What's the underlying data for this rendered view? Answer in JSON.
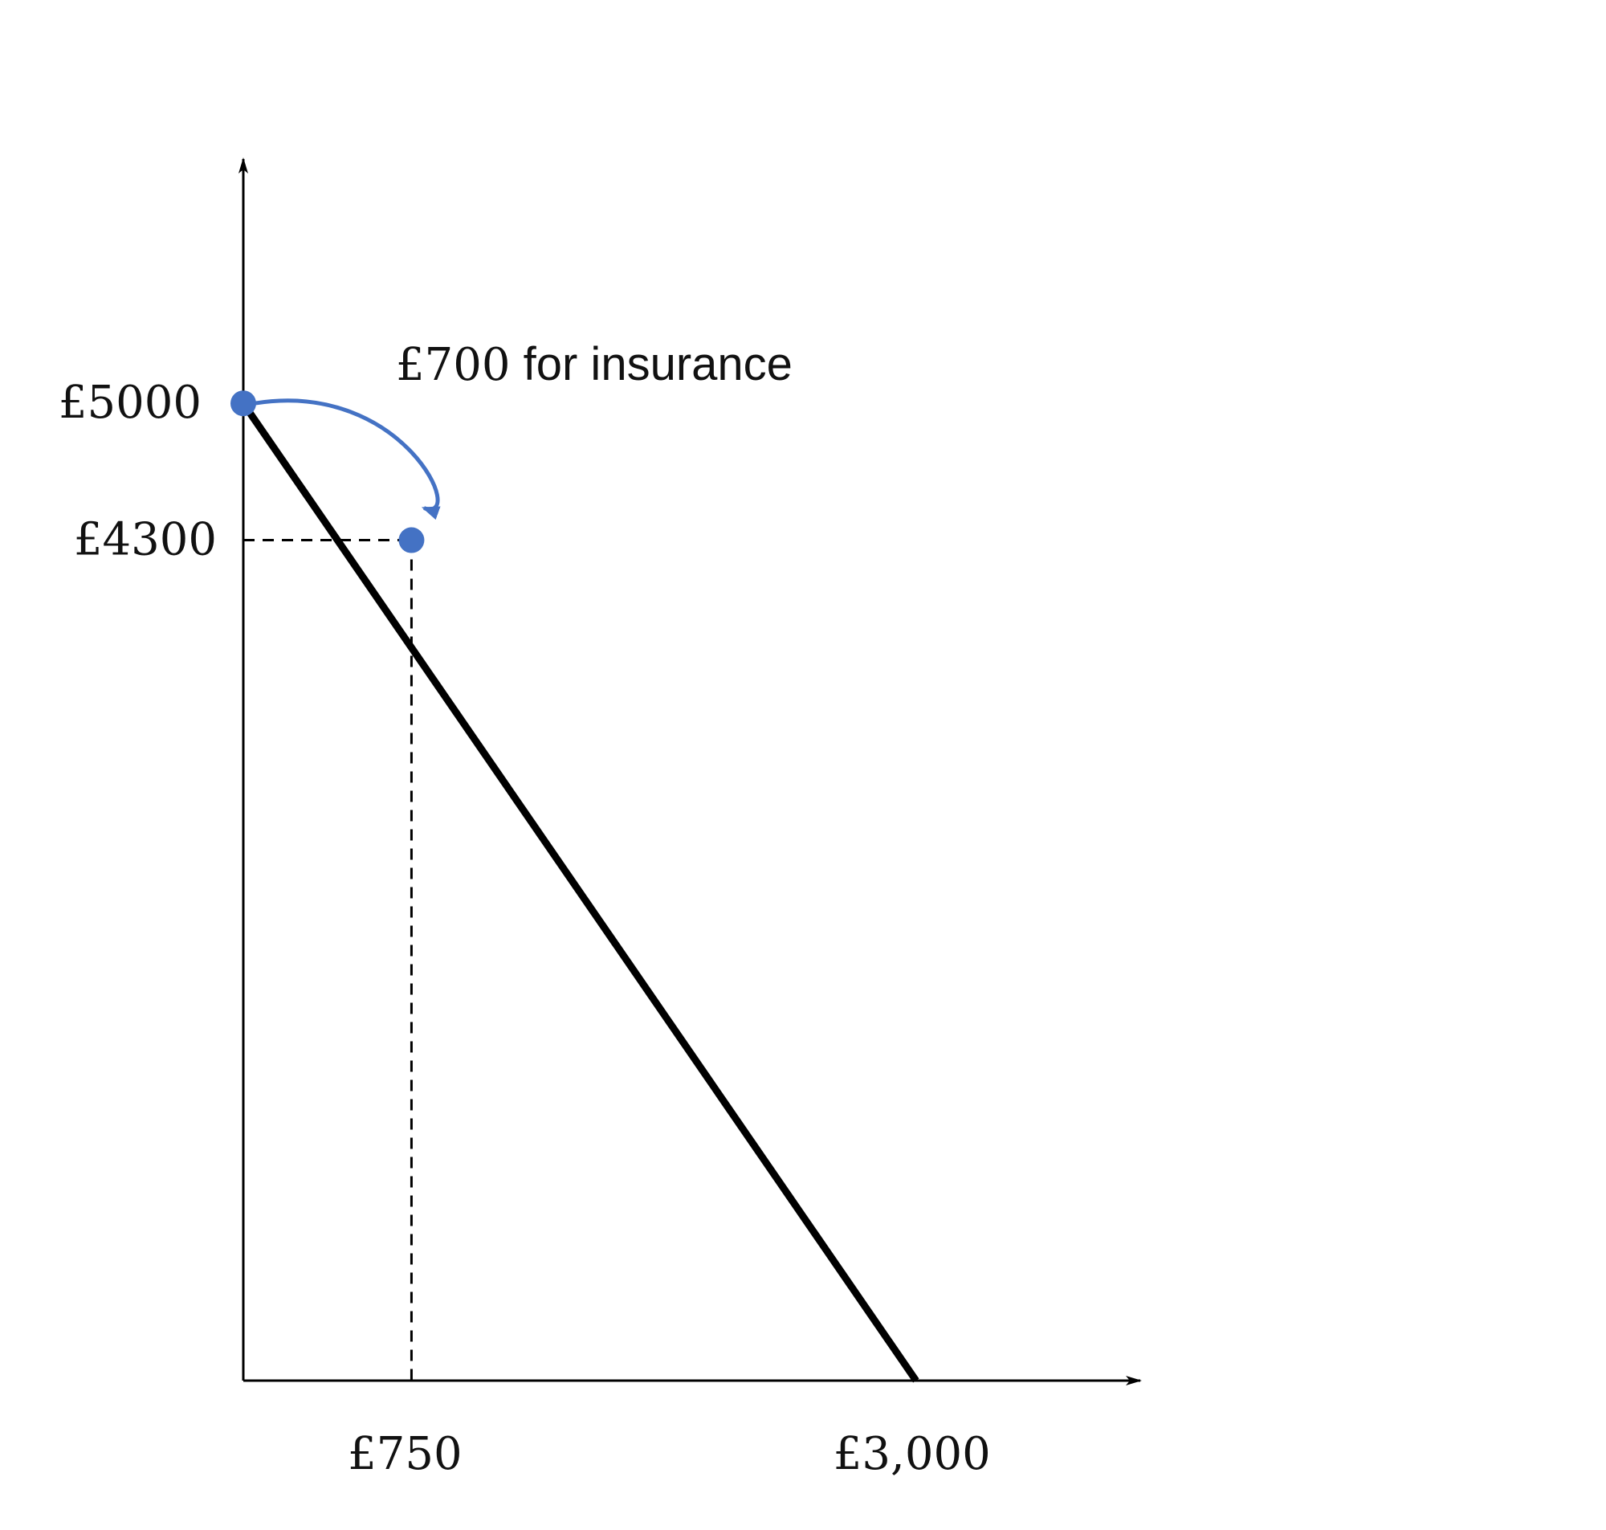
{
  "chart_data": {
    "type": "line",
    "title": "",
    "xlabel": "",
    "ylabel": "",
    "xlim": [
      0,
      4000
    ],
    "ylim": [
      0,
      6250
    ],
    "grid": false,
    "legend": "none",
    "series": [
      {
        "x": [
          0,
          3000
        ],
        "y": [
          5000,
          0
        ],
        "color": "#000000"
      }
    ],
    "points": [
      {
        "x": 0,
        "y": 5000,
        "color": "#4472c4"
      },
      {
        "x": 750,
        "y": 4300,
        "color": "#4472c4"
      }
    ],
    "x_ticks": [
      {
        "value": 750,
        "label": "£750"
      },
      {
        "value": 3000,
        "label": "£3,000"
      }
    ],
    "y_ticks": [
      {
        "value": 5000,
        "label": "£5000"
      },
      {
        "value": 4300,
        "label": "£4300"
      }
    ],
    "annotation": {
      "text_amount": "£700",
      "text_rest": " for insurance",
      "color": "#4472c4"
    }
  }
}
